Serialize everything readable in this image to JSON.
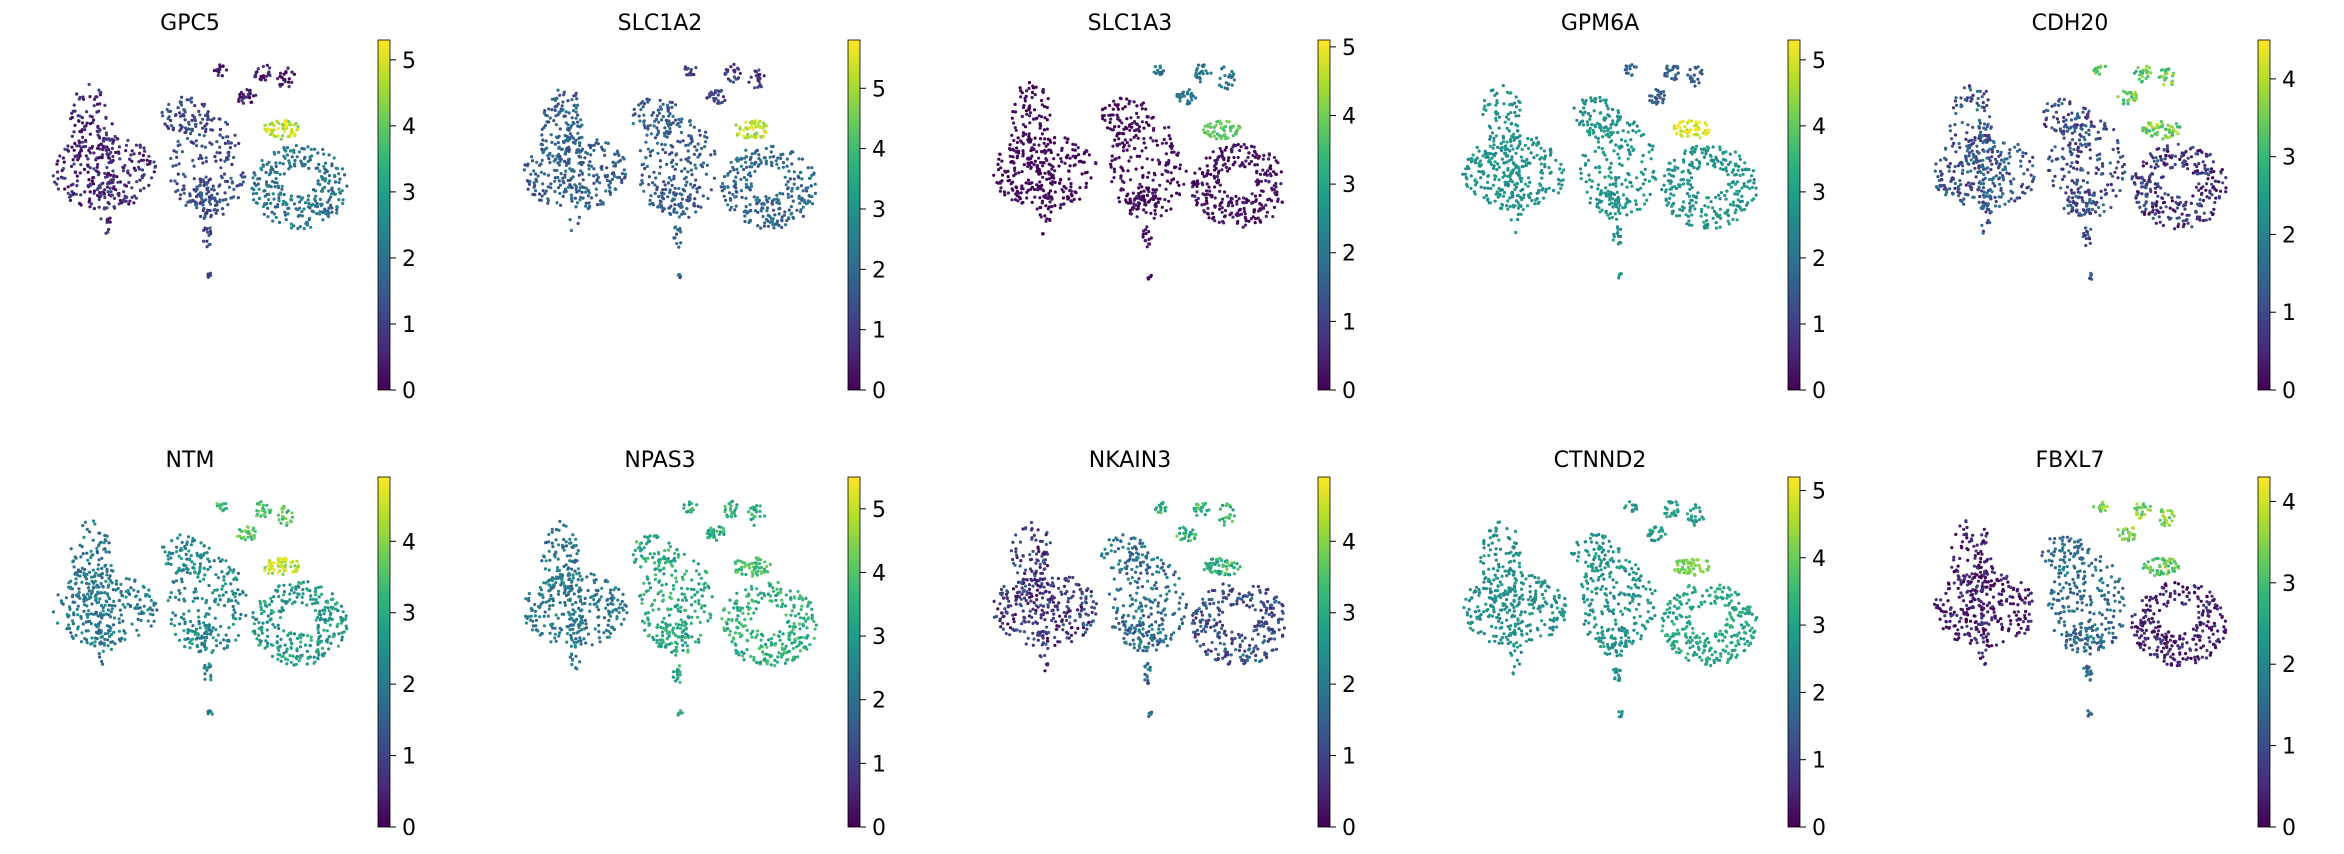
{
  "colormap": [
    "#440154",
    "#482878",
    "#3e4989",
    "#31688e",
    "#26828e",
    "#1f9e89",
    "#35b779",
    "#6ece58",
    "#b5de2b",
    "#fde725"
  ],
  "chart_data": [
    {
      "type": "scatter",
      "title": "GPC5",
      "colorbar": {
        "max": 5.3,
        "ticks": [
          0,
          1,
          2,
          3,
          4,
          5
        ]
      },
      "base": 0.6,
      "hot": [
        4.8,
        0.4,
        3.0,
        0.6,
        1.6
      ],
      "noise": 0.6
    },
    {
      "type": "scatter",
      "title": "SLC1A2",
      "colorbar": {
        "max": 5.8,
        "ticks": [
          0,
          1,
          2,
          3,
          4,
          5
        ]
      },
      "base": 1.6,
      "hot": [
        5.2,
        1.0,
        2.2,
        1.9,
        1.8
      ],
      "noise": 0.6
    },
    {
      "type": "scatter",
      "title": "SLC1A3",
      "colorbar": {
        "max": 5.1,
        "ticks": [
          0,
          1,
          2,
          3,
          4,
          5
        ]
      },
      "base": 0.1,
      "hot": [
        3.8,
        2.0,
        0.3,
        0.1,
        0.2
      ],
      "noise": 0.3
    },
    {
      "type": "scatter",
      "title": "GPM6A",
      "colorbar": {
        "max": 5.3,
        "ticks": [
          0,
          1,
          2,
          3,
          4,
          5
        ]
      },
      "base": 2.6,
      "hot": [
        5.0,
        1.6,
        2.8,
        2.8,
        2.8
      ],
      "noise": 0.4
    },
    {
      "type": "scatter",
      "title": "CDH20",
      "colorbar": {
        "max": 4.5,
        "ticks": [
          0,
          1,
          2,
          3,
          4
        ]
      },
      "base": 1.2,
      "hot": [
        3.6,
        3.4,
        0.3,
        1.2,
        1.0
      ],
      "noise": 0.7
    },
    {
      "type": "scatter",
      "title": "NTM",
      "colorbar": {
        "max": 4.9,
        "ticks": [
          0,
          1,
          2,
          3,
          4
        ]
      },
      "base": 2.2,
      "hot": [
        4.4,
        3.5,
        3.0,
        1.9,
        2.4
      ],
      "noise": 0.6
    },
    {
      "type": "scatter",
      "title": "NPAS3",
      "colorbar": {
        "max": 5.5,
        "ticks": [
          0,
          1,
          2,
          3,
          4,
          5
        ]
      },
      "base": 2.4,
      "hot": [
        3.8,
        3.5,
        4.2,
        2.1,
        4.0
      ],
      "noise": 0.6
    },
    {
      "type": "scatter",
      "title": "NKAIN3",
      "colorbar": {
        "max": 4.9,
        "ticks": [
          0,
          1,
          2,
          3,
          4
        ]
      },
      "base": 1.4,
      "hot": [
        3.2,
        3.2,
        1.0,
        0.4,
        2.0
      ],
      "noise": 0.7
    },
    {
      "type": "scatter",
      "title": "CTNND2",
      "colorbar": {
        "max": 5.2,
        "ticks": [
          0,
          1,
          2,
          3,
          4,
          5
        ]
      },
      "base": 2.6,
      "hot": [
        4.2,
        2.8,
        3.4,
        2.7,
        2.7
      ],
      "noise": 0.4
    },
    {
      "type": "scatter",
      "title": "FBXL7",
      "colorbar": {
        "max": 4.3,
        "ticks": [
          0,
          1,
          2,
          3,
          4
        ]
      },
      "base": 0.3,
      "hot": [
        3.2,
        3.4,
        0.4,
        0.3,
        2.4
      ],
      "noise": 0.5
    }
  ]
}
